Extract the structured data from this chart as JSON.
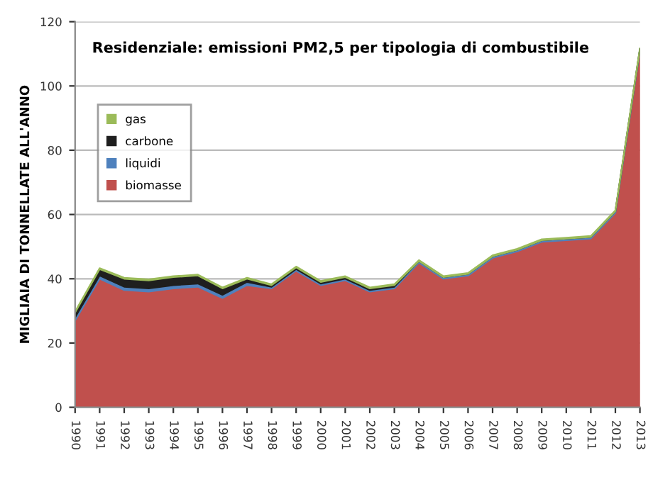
{
  "chart_data": {
    "type": "area",
    "stacked": true,
    "title": "Residenziale: emissioni PM2,5 per tipologia di combustibile",
    "ylabel": "MIGLIAIA DI TONNELLATE ALL'ANNO",
    "categories": [
      "1990",
      "1991",
      "1992",
      "1993",
      "1994",
      "1995",
      "1996",
      "1997",
      "1998",
      "1999",
      "2000",
      "2001",
      "2002",
      "2003",
      "2004",
      "2005",
      "2006",
      "2007",
      "2008",
      "2009",
      "2010",
      "2011",
      "2012",
      "2013"
    ],
    "series": [
      {
        "name": "biomasse",
        "color": "#c0504d",
        "values": [
          27,
          40,
          36.5,
          36,
          37,
          37.5,
          34,
          38,
          37,
          42.5,
          38,
          39.5,
          36,
          37,
          45,
          40,
          41,
          46.5,
          48.5,
          51.5,
          52,
          52.5,
          60.5,
          111
        ]
      },
      {
        "name": "liquidi",
        "color": "#4f81bd",
        "values": [
          1,
          1,
          1,
          1,
          1,
          1,
          1,
          1,
          0.5,
          0.5,
          0.5,
          0.5,
          0.5,
          0.5,
          0.5,
          0.5,
          0.5,
          0.5,
          0.5,
          0.5,
          0.5,
          0.5,
          0.5,
          0.5
        ]
      },
      {
        "name": "carbone",
        "color": "#1f1f1f",
        "values": [
          1.5,
          2,
          2.5,
          2.5,
          2.5,
          2.5,
          2,
          1,
          0.5,
          0.5,
          0.5,
          0.5,
          0.5,
          0.5,
          0,
          0,
          0,
          0,
          0,
          0,
          0,
          0,
          0,
          0
        ]
      },
      {
        "name": "gas",
        "color": "#9bbb59",
        "values": [
          0.3,
          0.3,
          0.3,
          0.3,
          0.3,
          0.3,
          0.3,
          0.3,
          0.3,
          0.3,
          0.3,
          0.3,
          0.3,
          0.3,
          0.3,
          0.3,
          0.3,
          0.3,
          0.3,
          0.3,
          0.3,
          0.3,
          0.3,
          0.3
        ]
      }
    ],
    "ylim": [
      0,
      120
    ],
    "yticks": [
      0,
      20,
      40,
      60,
      80,
      100,
      120
    ],
    "grid": "y",
    "legend": "top left"
  }
}
